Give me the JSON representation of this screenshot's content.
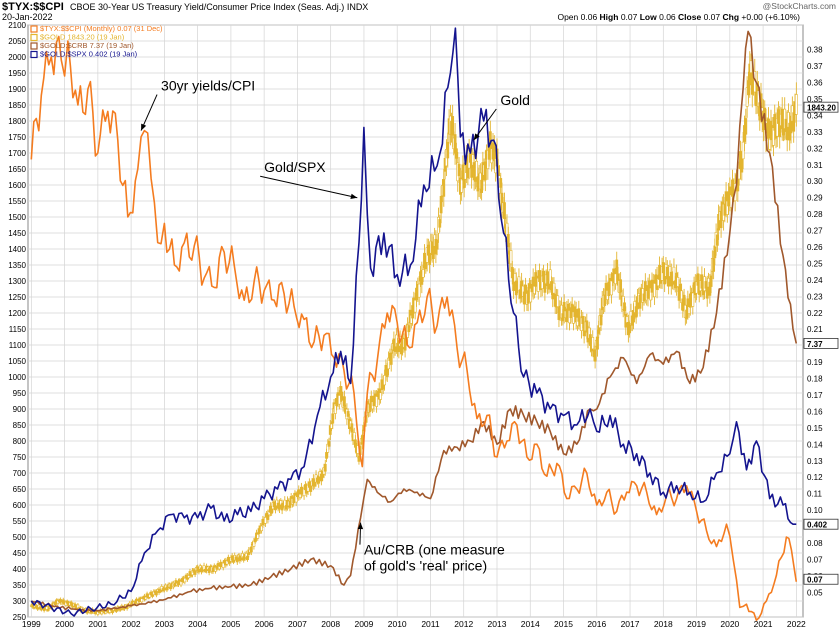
{
  "header": {
    "symbol": "$TYX:$$CPI",
    "description": "CBOE 30-Year US Treasury Yield/Consumer Price Index (Seas. Adj.)",
    "exchange": "INDX",
    "date": "20-Jan-2022",
    "open_label": "Open",
    "open": "0.06",
    "high_label": "High",
    "high": "0.07",
    "low_label": "Low",
    "low": "0.06",
    "close_label": "Close",
    "close": "0.07",
    "chg_label": "Chg",
    "chg": "+0.00 (+6.10%)",
    "brand": "@StockCharts.com"
  },
  "colors": {
    "yields_cpi": "#f47c20",
    "gold": "#e3b52f",
    "gold_crb": "#a0582c",
    "gold_spx": "#14148f",
    "grid": "#d4d4d4",
    "background": "#ffffff"
  },
  "chart_data": {
    "type": "line",
    "x_ticks": [
      "1999",
      "2000",
      "2001",
      "2002",
      "2003",
      "2004",
      "2005",
      "2006",
      "2007",
      "2008",
      "2009",
      "2010",
      "2011",
      "2012",
      "2013",
      "2014",
      "2015",
      "2016",
      "2017",
      "2018",
      "2019",
      "2020",
      "2021",
      "2022"
    ],
    "left_axis": {
      "range": [
        250,
        2100
      ],
      "ticks": [
        "250",
        "300",
        "350",
        "400",
        "450",
        "500",
        "550",
        "600",
        "650",
        "700",
        "750",
        "800",
        "850",
        "900",
        "950",
        "1000",
        "1050",
        "1100",
        "1150",
        "1200",
        "1250",
        "1300",
        "1350",
        "1400",
        "1450",
        "1500",
        "1550",
        "1600",
        "1650",
        "1700",
        "1750",
        "1800",
        "1850",
        "1900",
        "1950",
        "2000",
        "2050",
        "2100"
      ]
    },
    "right_axis": {
      "range": [
        0.035,
        0.395
      ],
      "ticks": [
        "0.05",
        "0.06",
        "0.07",
        "0.08",
        "0.09",
        "0.10",
        "0.11",
        "0.12",
        "0.13",
        "0.14",
        "0.15",
        "0.16",
        "0.17",
        "0.18",
        "0.19",
        "0.20",
        "0.21",
        "0.22",
        "0.23",
        "0.24",
        "0.25",
        "0.26",
        "0.27",
        "0.28",
        "0.29",
        "0.30",
        "0.31",
        "0.32",
        "0.33",
        "0.34",
        "0.35",
        "0.36",
        "0.37",
        "0.38"
      ]
    },
    "grid": true,
    "legend": [
      {
        "label": "$TYX:$$CPI (Monthly) 0.07 (31 Dec)",
        "color": "#f47c20"
      },
      {
        "label": "$GOLD 1843.20 (19 Jan)",
        "color": "#e3b52f"
      },
      {
        "label": "$GOLD:$CRB 7.37 (19 Jan)",
        "color": "#a0582c"
      },
      {
        "label": "$GOLD:$SPX 0.402 (19 Jan)",
        "color": "#14148f"
      }
    ],
    "last_value_tags": [
      {
        "value": "1843.20",
        "axis_value": 1843.2
      },
      {
        "value": "7.37",
        "axis_value": 1105
      },
      {
        "value": "0.402",
        "axis_value": 540
      },
      {
        "value": "0.07",
        "axis_value": 368
      }
    ],
    "annotations": [
      {
        "lines": [
          "30yr yields/CPI"
        ],
        "x": 2002.9,
        "y": 1895,
        "arrow_to": [
          2002.3,
          1770
        ]
      },
      {
        "lines": [
          "Gold/SPX"
        ],
        "x": 2006.0,
        "y": 1640,
        "arrow_to": [
          2008.8,
          1560
        ]
      },
      {
        "lines": [
          "Gold"
        ],
        "x": 2013.1,
        "y": 1850,
        "arrow_to": [
          2012.3,
          1740
        ]
      },
      {
        "lines": [
          "Au/CRB (one measure",
          "of gold's 'real' price)"
        ],
        "x": 2009.0,
        "y": 445,
        "arrow_to": [
          2008.9,
          545
        ]
      }
    ],
    "series": [
      {
        "name": "$TYX:$$CPI (Monthly)",
        "color": "#f47c20",
        "x": [
          1999.0,
          1999.3,
          1999.6,
          1999.9,
          2000.1,
          2000.4,
          2000.7,
          2001.0,
          2001.3,
          2001.6,
          2001.9,
          2002.2,
          2002.4,
          2002.6,
          2002.8,
          2003.0,
          2003.3,
          2003.6,
          2003.9,
          2004.2,
          2004.5,
          2004.8,
          2005.1,
          2005.4,
          2005.7,
          2006.0,
          2006.3,
          2006.6,
          2006.9,
          2007.2,
          2007.5,
          2007.8,
          2008.1,
          2008.4,
          2008.7,
          2008.95,
          2009.1,
          2009.4,
          2009.7,
          2010.0,
          2010.3,
          2010.6,
          2010.9,
          2011.2,
          2011.5,
          2011.8,
          2012.1,
          2012.4,
          2012.7,
          2013.0,
          2013.3,
          2013.6,
          2013.9,
          2014.2,
          2014.5,
          2014.8,
          2015.1,
          2015.4,
          2015.7,
          2016.0,
          2016.3,
          2016.6,
          2016.9,
          2017.2,
          2017.5,
          2017.8,
          2018.1,
          2018.4,
          2018.7,
          2019.0,
          2019.3,
          2019.6,
          2019.9,
          2020.1,
          2020.3,
          2020.5,
          2020.8,
          2021.1,
          2021.4,
          2021.7,
          2021.85,
          2022.0
        ],
        "y": [
          1680,
          1880,
          2000,
          1990,
          2050,
          1850,
          1900,
          1700,
          1830,
          1740,
          1500,
          1650,
          1770,
          1620,
          1420,
          1480,
          1350,
          1420,
          1410,
          1310,
          1280,
          1390,
          1350,
          1240,
          1300,
          1270,
          1240,
          1260,
          1220,
          1180,
          1110,
          1130,
          1060,
          1020,
          950,
          720,
          950,
          1050,
          1200,
          1170,
          1100,
          1170,
          1250,
          1160,
          1250,
          1090,
          1020,
          870,
          880,
          750,
          800,
          850,
          750,
          790,
          690,
          730,
          620,
          650,
          700,
          600,
          640,
          580,
          640,
          660,
          640,
          570,
          630,
          620,
          660,
          580,
          520,
          470,
          540,
          430,
          280,
          290,
          240,
          300,
          380,
          500,
          460,
          360
        ],
        "last": "0.07"
      },
      {
        "name": "$GOLD",
        "color": "#e3b52f",
        "x": [
          1999.0,
          1999.5,
          1999.8,
          2000.2,
          2000.6,
          2001.0,
          2001.4,
          2001.8,
          2002.2,
          2002.6,
          2003.0,
          2003.5,
          2004.0,
          2004.5,
          2005.0,
          2005.5,
          2006.0,
          2006.3,
          2006.7,
          2007.0,
          2007.4,
          2007.8,
          2008.1,
          2008.3,
          2008.6,
          2008.85,
          2009.1,
          2009.5,
          2009.9,
          2010.2,
          2010.5,
          2010.9,
          2011.2,
          2011.6,
          2011.7,
          2011.9,
          2012.2,
          2012.5,
          2012.8,
          2013.0,
          2013.3,
          2013.5,
          2013.9,
          2014.2,
          2014.6,
          2014.9,
          2015.3,
          2015.7,
          2015.95,
          2016.2,
          2016.6,
          2016.95,
          2017.3,
          2017.7,
          2018.0,
          2018.4,
          2018.7,
          2019.0,
          2019.4,
          2019.7,
          2020.0,
          2020.2,
          2020.4,
          2020.6,
          2020.9,
          2021.2,
          2021.5,
          2021.8,
          2022.0
        ],
        "y": [
          285,
          275,
          300,
          290,
          270,
          265,
          270,
          280,
          300,
          320,
          340,
          360,
          400,
          400,
          430,
          440,
          550,
          600,
          600,
          630,
          660,
          700,
          900,
          950,
          850,
          750,
          900,
          950,
          1100,
          1100,
          1220,
          1380,
          1420,
          1800,
          1750,
          1600,
          1680,
          1600,
          1720,
          1670,
          1450,
          1300,
          1250,
          1300,
          1300,
          1200,
          1200,
          1150,
          1070,
          1240,
          1330,
          1150,
          1250,
          1280,
          1330,
          1300,
          1200,
          1290,
          1280,
          1500,
          1560,
          1600,
          1700,
          1960,
          1850,
          1750,
          1800,
          1780,
          1843.2
        ],
        "last": "1843.20"
      },
      {
        "name": "$GOLD:$CRB",
        "color": "#a0582c",
        "x": [
          1999.0,
          1999.6,
          2000.2,
          2000.8,
          2001.4,
          2002.0,
          2002.6,
          2003.2,
          2003.8,
          2004.4,
          2005.0,
          2005.6,
          2006.2,
          2006.8,
          2007.4,
          2008.0,
          2008.4,
          2008.6,
          2008.9,
          2009.1,
          2009.4,
          2009.8,
          2010.2,
          2010.6,
          2011.0,
          2011.4,
          2011.8,
          2012.2,
          2012.6,
          2013.0,
          2013.4,
          2013.8,
          2014.2,
          2014.6,
          2015.0,
          2015.4,
          2015.8,
          2016.0,
          2016.4,
          2016.8,
          2017.2,
          2017.6,
          2018.0,
          2018.4,
          2018.8,
          2019.2,
          2019.6,
          2020.0,
          2020.2,
          2020.4,
          2020.55,
          2020.8,
          2021.2,
          2021.6,
          2021.9,
          2022.0
        ],
        "y": [
          300,
          285,
          275,
          268,
          275,
          285,
          295,
          310,
          330,
          340,
          345,
          350,
          375,
          400,
          430,
          410,
          350,
          380,
          560,
          680,
          640,
          610,
          650,
          640,
          620,
          770,
          780,
          800,
          860,
          790,
          900,
          880,
          860,
          830,
          760,
          790,
          900,
          900,
          1000,
          1060,
          980,
          1070,
          1040,
          1080,
          980,
          1030,
          1200,
          1450,
          1600,
          1900,
          2080,
          1920,
          1700,
          1380,
          1150,
          1105
        ],
        "last": "7.37"
      },
      {
        "name": "$GOLD:$SPX",
        "color": "#14148f",
        "x": [
          1999.0,
          1999.6,
          2000.2,
          2000.8,
          2001.4,
          2002.0,
          2002.4,
          2002.8,
          2003.2,
          2003.6,
          2004.0,
          2004.4,
          2004.8,
          2005.2,
          2005.6,
          2006.0,
          2006.4,
          2006.8,
          2007.2,
          2007.6,
          2008.0,
          2008.3,
          2008.6,
          2008.85,
          2009.0,
          2009.2,
          2009.6,
          2010.0,
          2010.4,
          2010.8,
          2011.2,
          2011.6,
          2011.75,
          2011.9,
          2012.2,
          2012.6,
          2012.9,
          2013.2,
          2013.5,
          2013.8,
          2014.2,
          2014.6,
          2015.0,
          2015.4,
          2015.8,
          2016.0,
          2016.4,
          2016.8,
          2017.2,
          2017.6,
          2018.0,
          2018.4,
          2018.8,
          2019.2,
          2019.6,
          2020.0,
          2020.2,
          2020.5,
          2020.8,
          2021.2,
          2021.6,
          2021.9,
          2022.0
        ],
        "y": [
          300,
          280,
          260,
          275,
          290,
          330,
          450,
          520,
          570,
          560,
          560,
          590,
          550,
          570,
          580,
          620,
          650,
          680,
          720,
          880,
          1000,
          1080,
          980,
          1420,
          1780,
          1340,
          1450,
          1320,
          1350,
          1600,
          1660,
          1950,
          2090,
          1750,
          1700,
          1800,
          1740,
          1450,
          1200,
          1000,
          950,
          900,
          880,
          850,
          900,
          830,
          880,
          790,
          760,
          700,
          640,
          660,
          640,
          610,
          700,
          760,
          860,
          710,
          800,
          620,
          600,
          540,
          540
        ],
        "last": "0.402"
      }
    ]
  }
}
